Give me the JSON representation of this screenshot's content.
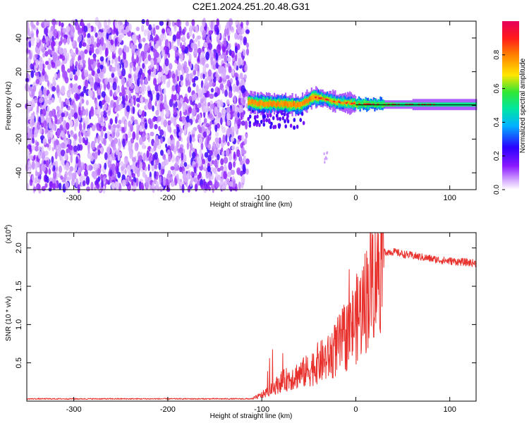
{
  "figure": {
    "title": "C2E1.2024.251.20.48.G31",
    "colors": {
      "snr_line": "#e8302c",
      "background": "#ffffff",
      "axis": "#000000",
      "colormap": [
        "#ffffff",
        "#d9b3ff",
        "#8c1aff",
        "#2b00ff",
        "#00b3ff",
        "#00e6a0",
        "#33e633",
        "#ffe600",
        "#ff8000",
        "#ff1a1a",
        "#e6005c"
      ]
    }
  },
  "chart_data": [
    {
      "type": "heatmap",
      "title": "C2E1.2024.251.20.48.G31",
      "xlabel": "Height of straight line (km)",
      "ylabel": "Frequency (Hz)",
      "xlim": [
        -350,
        128
      ],
      "ylim": [
        -50,
        50
      ],
      "x_ticks": [
        -300,
        -200,
        -100,
        0,
        100
      ],
      "y_ticks": [
        -40,
        -20,
        0,
        20,
        40
      ],
      "colorbar": {
        "label": "Normalized spectral amplitude",
        "range": [
          0,
          1
        ],
        "ticks": [
          "0.0",
          "0.2",
          "0.4",
          "0.6",
          "0.8"
        ]
      },
      "regions": [
        {
          "description": "noise",
          "x_range": [
            -350,
            -115
          ],
          "freq_range": [
            -50,
            50
          ],
          "amplitude": [
            0.02,
            0.3
          ]
        },
        {
          "description": "signal",
          "x_range": [
            -115,
            128
          ],
          "freq_center": [
            {
              "x": -115,
              "f": 2
            },
            {
              "x": -100,
              "f": 1
            },
            {
              "x": -80,
              "f": 1
            },
            {
              "x": -60,
              "f": 0
            },
            {
              "x": -45,
              "f": 5
            },
            {
              "x": -35,
              "f": 4
            },
            {
              "x": -20,
              "f": 2
            },
            {
              "x": 0,
              "f": 1
            },
            {
              "x": 30,
              "f": 0.5
            },
            {
              "x": 128,
              "f": 0.5
            }
          ]
        }
      ],
      "grid": false
    },
    {
      "type": "line",
      "title": "",
      "xlabel": "Height of straight line (km)",
      "ylabel": "SNR (10 * v/v)",
      "y_multiplier": "(x10^4)",
      "xlim": [
        -350,
        128
      ],
      "ylim": [
        0,
        2.2
      ],
      "x_ticks": [
        -300,
        -200,
        -100,
        0,
        100
      ],
      "y_ticks": [
        "0.5",
        "1.0",
        "1.5",
        "2.0"
      ],
      "series": [
        {
          "name": "",
          "x": [
            -350,
            -300,
            -250,
            -200,
            -150,
            -110,
            -100,
            -90,
            -80,
            -70,
            -60,
            -50,
            -40,
            -30,
            -20,
            -10,
            0,
            10,
            15,
            20,
            25,
            30,
            40,
            50,
            60,
            70,
            80,
            90,
            100,
            110,
            120,
            128
          ],
          "y": [
            0.03,
            0.03,
            0.03,
            0.03,
            0.03,
            0.03,
            0.08,
            0.15,
            0.25,
            0.3,
            0.35,
            0.4,
            0.5,
            0.55,
            0.7,
            0.85,
            1.05,
            1.3,
            1.55,
            1.7,
            1.85,
            1.95,
            1.95,
            1.92,
            1.9,
            1.88,
            1.86,
            1.84,
            1.83,
            1.82,
            1.81,
            1.8
          ]
        }
      ],
      "grid": false
    }
  ]
}
